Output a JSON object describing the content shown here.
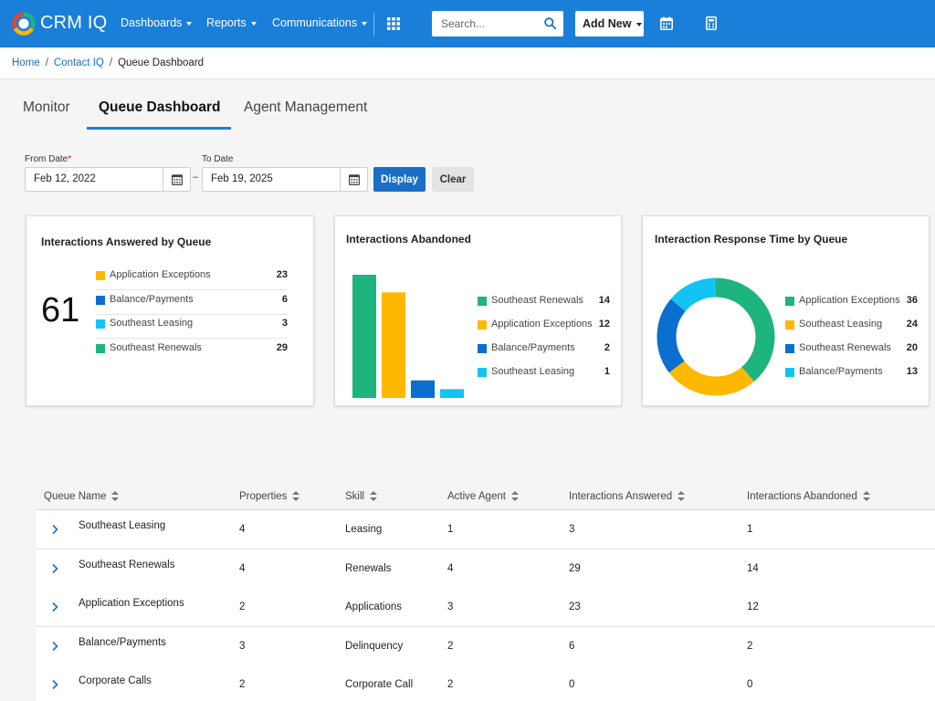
{
  "header": {
    "brand": "CRM IQ",
    "nav": [
      "Dashboards",
      "Reports",
      "Communications"
    ],
    "search_placeholder": "Search...",
    "add_new_label": "Add New",
    "accent_color": "#1a7fd9",
    "icons": [
      "apps-grid-icon",
      "search-icon",
      "calendar-icon",
      "calculator-icon"
    ]
  },
  "breadcrumb": {
    "home": "Home",
    "section": "Contact IQ",
    "current": "Queue Dashboard",
    "separator": "/"
  },
  "tabs": [
    {
      "label": "Monitor",
      "active": false
    },
    {
      "label": "Queue Dashboard",
      "active": true
    },
    {
      "label": "Agent Management",
      "active": false
    }
  ],
  "filters": {
    "from_label": "From Date",
    "required_mark": "*",
    "from_value": "Feb 12, 2022",
    "to_label": "To Date",
    "to_value": "Feb 19, 2025",
    "range_dash": "–",
    "display_label": "Display",
    "clear_label": "Clear"
  },
  "cards": {
    "answered": {
      "title": "Interactions Answered by Queue",
      "total": "61",
      "legend": [
        {
          "label": "Application Exceptions",
          "value": "23",
          "color": "#ffb800"
        },
        {
          "label": "Balance/Payments",
          "value": "6",
          "color": "#0a6fcf"
        },
        {
          "label": "Southeast Leasing",
          "value": "3",
          "color": "#12c3f4"
        },
        {
          "label": "Southeast Renewals",
          "value": "29",
          "color": "#1eb47d"
        }
      ]
    },
    "abandoned": {
      "title": "Interactions Abandoned",
      "legend": [
        {
          "label": "Southeast Renewals",
          "value": "14",
          "color": "#1eb47d"
        },
        {
          "label": "Application Exceptions",
          "value": "12",
          "color": "#ffb800"
        },
        {
          "label": "Balance/Payments",
          "value": "2",
          "color": "#0a6fcf"
        },
        {
          "label": "Southeast Leasing",
          "value": "1",
          "color": "#12c3f4"
        }
      ]
    },
    "response_time": {
      "title": "Interaction Response Time by Queue",
      "legend": [
        {
          "label": "Application Exceptions",
          "value": "36",
          "color": "#1eb47d"
        },
        {
          "label": "Southeast Leasing",
          "value": "24",
          "color": "#ffb800"
        },
        {
          "label": "Southeast Renewals",
          "value": "20",
          "color": "#0a6fcf"
        },
        {
          "label": "Balance/Payments",
          "value": "13",
          "color": "#12c3f4"
        }
      ]
    }
  },
  "chart_data": [
    {
      "type": "bar",
      "title": "Interactions Abandoned",
      "categories": [
        "Southeast Renewals",
        "Application Exceptions",
        "Balance/Payments",
        "Southeast Leasing"
      ],
      "values": [
        14,
        12,
        2,
        1
      ],
      "colors": [
        "#1eb47d",
        "#ffb800",
        "#0a6fcf",
        "#12c3f4"
      ],
      "ylim": [
        0,
        14
      ],
      "grid": false,
      "legend": "right"
    },
    {
      "type": "pie",
      "style": "donut",
      "title": "Interaction Response Time by Queue",
      "categories": [
        "Application Exceptions",
        "Southeast Leasing",
        "Southeast Renewals",
        "Balance/Payments"
      ],
      "values": [
        36,
        24,
        20,
        13
      ],
      "colors": [
        "#1eb47d",
        "#ffb800",
        "#0a6fcf",
        "#12c3f4"
      ],
      "legend": "right"
    }
  ],
  "table": {
    "columns": [
      "Queue Name",
      "Properties",
      "Skill",
      "Active Agent",
      "Interactions Answered",
      "Interactions Abandoned"
    ],
    "rows": [
      [
        "Southeast Leasing",
        "4",
        "Leasing",
        "1",
        "3",
        "1"
      ],
      [
        "Southeast Renewals",
        "4",
        "Renewals",
        "4",
        "29",
        "14"
      ],
      [
        "Application Exceptions",
        "2",
        "Applications",
        "3",
        "23",
        "12"
      ],
      [
        "Balance/Payments",
        "3",
        "Delinquency",
        "2",
        "6",
        "2"
      ],
      [
        "Corporate Calls",
        "2",
        "Corporate Call",
        "2",
        "0",
        "0"
      ]
    ]
  }
}
